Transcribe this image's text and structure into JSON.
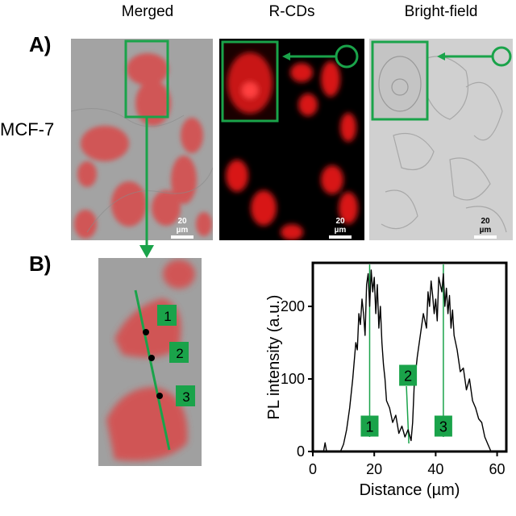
{
  "columns": {
    "merged": "Merged",
    "rcds": "R-CDs",
    "bright": "Bright-field"
  },
  "panel_a_label": "A)",
  "panel_b_label": "B)",
  "cell_line": "MCF-7",
  "scale_bar_text": "20 µm",
  "point_markers": [
    "1",
    "2",
    "3"
  ],
  "colors": {
    "green": "#1aa34a",
    "red": "#e02020",
    "merged_bg": "#a3a3a3",
    "bright_bg": "#d0d0d0",
    "fluor_bg": "#000000"
  },
  "chart_data": {
    "type": "line",
    "xlabel": "Distance (µm)",
    "ylabel": "PL intensity (a.u.)",
    "xlim": [
      0,
      63
    ],
    "ylim": [
      0,
      260
    ],
    "xticks": [
      0,
      20,
      40,
      60
    ],
    "yticks": [
      0,
      100,
      200
    ],
    "annotation_lines_x": [
      18.5,
      31,
      42.5
    ],
    "markers": [
      {
        "label": "1",
        "x": 18.5,
        "y": 35
      },
      {
        "label": "2",
        "x": 31,
        "y": 105
      },
      {
        "label": "3",
        "x": 42.5,
        "y": 35
      }
    ],
    "series": [
      {
        "x": [
          0,
          2,
          3.5,
          4,
          4.5,
          6,
          8,
          9,
          10,
          11,
          12,
          13,
          14,
          14.5,
          15,
          15.5,
          16,
          16.5,
          17,
          17.5,
          18,
          18.5,
          19,
          19.5,
          20,
          20.5,
          21,
          21.5,
          22,
          22.5,
          23,
          23.5,
          24,
          25,
          26,
          27,
          28,
          29,
          30,
          31,
          32,
          32.5,
          33,
          34,
          35,
          36,
          37,
          37.5,
          38,
          38.5,
          39,
          39.5,
          40,
          40.5,
          41,
          41.5,
          42,
          42.5,
          43,
          43.5,
          44,
          44.5,
          45,
          45.5,
          46,
          47,
          48,
          49,
          50,
          51,
          52,
          53,
          54,
          55,
          56,
          57,
          58,
          59,
          60,
          62
        ],
        "y": [
          0,
          0,
          0,
          12,
          0,
          0,
          0,
          0,
          10,
          30,
          60,
          100,
          150,
          140,
          190,
          175,
          210,
          190,
          160,
          230,
          245,
          200,
          250,
          220,
          240,
          190,
          230,
          170,
          200,
          150,
          120,
          100,
          70,
          60,
          40,
          50,
          25,
          35,
          20,
          30,
          15,
          40,
          90,
          130,
          160,
          190,
          170,
          220,
          200,
          235,
          215,
          190,
          210,
          180,
          240,
          230,
          220,
          245,
          200,
          225,
          190,
          215,
          170,
          195,
          160,
          140,
          110,
          115,
          85,
          100,
          70,
          60,
          45,
          40,
          20,
          10,
          0,
          0,
          0,
          0
        ]
      }
    ]
  }
}
